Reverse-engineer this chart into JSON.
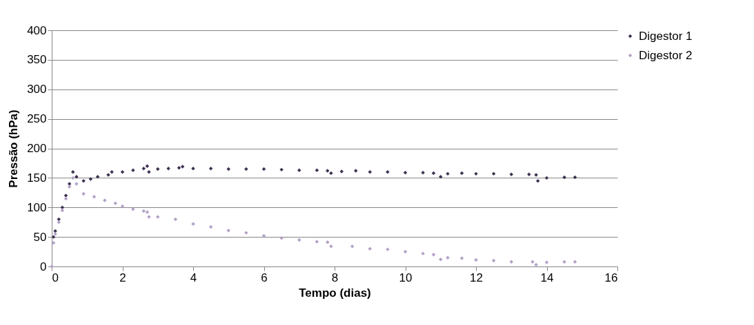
{
  "chart_data": {
    "type": "scatter",
    "xlabel": "Tempo (dias)",
    "ylabel": "Pressão (hPa)",
    "xlim": [
      0,
      16
    ],
    "xticks": [
      0,
      2,
      4,
      6,
      8,
      10,
      12,
      14,
      16
    ],
    "ylim": [
      0,
      400
    ],
    "yticks": [
      0,
      50,
      100,
      150,
      200,
      250,
      300,
      350,
      400
    ],
    "grid": "y",
    "legend": "right",
    "marker": "diamond",
    "series": [
      {
        "name": "Digestor 1",
        "color": "#3f3151",
        "x": [
          0.05,
          0.1,
          0.2,
          0.3,
          0.4,
          0.5,
          0.6,
          0.7,
          0.9,
          1.1,
          1.3,
          1.6,
          1.7,
          2.0,
          2.3,
          2.6,
          2.7,
          2.75,
          3.0,
          3.3,
          3.6,
          3.7,
          4.0,
          4.5,
          5.0,
          5.5,
          6.0,
          6.5,
          7.0,
          7.5,
          7.8,
          7.9,
          8.2,
          8.6,
          9.0,
          9.5,
          10.0,
          10.5,
          10.8,
          11.0,
          11.2,
          11.6,
          12.0,
          12.5,
          13.0,
          13.5,
          13.7,
          13.75,
          14.0,
          14.5,
          14.8
        ],
        "values": [
          50,
          60,
          80,
          100,
          120,
          140,
          160,
          152,
          145,
          148,
          152,
          155,
          160,
          160,
          163,
          166,
          170,
          160,
          165,
          166,
          167,
          169,
          166,
          166,
          165,
          165,
          165,
          164,
          163,
          163,
          162,
          158,
          161,
          162,
          160,
          160,
          159,
          159,
          158,
          152,
          157,
          158,
          157,
          157,
          156,
          156,
          155,
          145,
          150,
          151,
          151
        ]
      },
      {
        "name": "Digestor 2",
        "color": "#b3a2c7",
        "x": [
          0,
          0.05,
          0.1,
          0.2,
          0.3,
          0.4,
          0.5,
          0.6,
          0.7,
          0.9,
          1.2,
          1.5,
          1.8,
          2.0,
          2.3,
          2.6,
          2.7,
          2.75,
          3.0,
          3.5,
          4.0,
          4.5,
          5.0,
          5.5,
          6.0,
          6.5,
          7.0,
          7.5,
          7.8,
          7.9,
          8.5,
          9.0,
          9.5,
          10.0,
          10.5,
          10.8,
          11.0,
          11.2,
          11.6,
          12.0,
          12.5,
          13.0,
          13.6,
          13.7,
          14.0,
          14.5,
          14.8
        ],
        "values": [
          0,
          40,
          55,
          75,
          95,
          115,
          135,
          150,
          140,
          123,
          118,
          112,
          107,
          102,
          97,
          94,
          92,
          84,
          84,
          80,
          72,
          67,
          61,
          57,
          52,
          48,
          45,
          42,
          41,
          34,
          34,
          30,
          29,
          25,
          22,
          20,
          12,
          15,
          14,
          11,
          10,
          8,
          8,
          3,
          7,
          8,
          8
        ]
      }
    ]
  }
}
